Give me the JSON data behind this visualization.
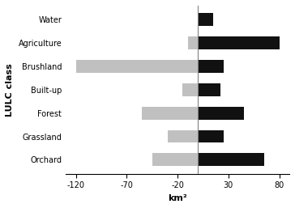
{
  "categories": [
    "Orchard",
    "Grassland",
    "Forest",
    "Built-up",
    "Brushland",
    "Agriculture",
    "Water"
  ],
  "losses": [
    -45,
    -30,
    -55,
    -15,
    -120,
    -10,
    0
  ],
  "gains": [
    65,
    25,
    45,
    22,
    25,
    80,
    15
  ],
  "loss_color": "#c0c0c0",
  "gain_color": "#111111",
  "ylabel": "LULC class",
  "xlabel": "km²",
  "xlim": [
    -130,
    90
  ],
  "xticks": [
    -120,
    -70,
    -20,
    30,
    80
  ],
  "bar_height": 0.55,
  "vline_x": 0,
  "background_color": "#ffffff"
}
